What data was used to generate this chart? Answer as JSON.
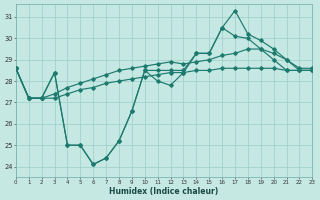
{
  "xlabel": "Humidex (Indice chaleur)",
  "bg_color": "#c5e8e3",
  "grid_color": "#9ecec8",
  "line_color": "#1d7a6e",
  "xlim": [
    0,
    23
  ],
  "ylim": [
    23.5,
    31.6
  ],
  "xticks": [
    0,
    1,
    2,
    3,
    4,
    5,
    6,
    7,
    8,
    9,
    10,
    11,
    12,
    13,
    14,
    15,
    16,
    17,
    18,
    19,
    20,
    21,
    22,
    23
  ],
  "yticks": [
    24,
    25,
    26,
    27,
    28,
    29,
    30,
    31
  ],
  "series_jagged": [
    28.6,
    27.2,
    27.2,
    28.4,
    25.0,
    25.0,
    24.1,
    24.4,
    25.2,
    26.6,
    28.5,
    28.0,
    27.8,
    28.4,
    29.3,
    29.3,
    30.5,
    31.3,
    30.2,
    29.9,
    29.5,
    29.0,
    28.5,
    28.5
  ],
  "series_flat": [
    28.6,
    27.2,
    27.2,
    27.2,
    27.4,
    27.6,
    27.7,
    27.9,
    28.0,
    28.1,
    28.2,
    28.3,
    28.4,
    28.4,
    28.5,
    28.5,
    28.6,
    28.6,
    28.6,
    28.6,
    28.6,
    28.5,
    28.5,
    28.5
  ],
  "series_mid": [
    28.6,
    27.2,
    27.2,
    27.4,
    27.7,
    27.9,
    28.1,
    28.3,
    28.5,
    28.6,
    28.7,
    28.8,
    28.9,
    28.8,
    28.9,
    29.0,
    29.2,
    29.3,
    29.5,
    29.5,
    29.3,
    29.0,
    28.6,
    28.6
  ],
  "series_upper": [
    28.6,
    27.2,
    27.2,
    28.4,
    25.0,
    25.0,
    24.1,
    24.4,
    25.2,
    26.6,
    28.5,
    28.5,
    28.5,
    28.5,
    29.3,
    29.3,
    30.5,
    30.1,
    30.0,
    29.5,
    29.0,
    28.5,
    28.5,
    28.5
  ]
}
